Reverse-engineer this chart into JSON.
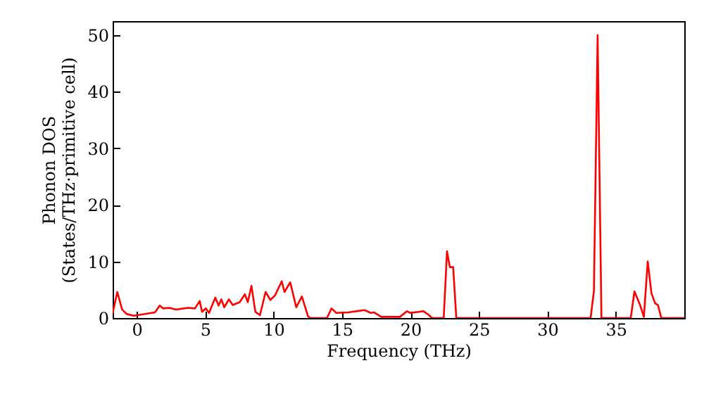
{
  "chart_data": {
    "type": "line",
    "xlabel": "Frequency (THz)",
    "ylabel": "Phonon DOS\n(States/THz·primitive cell)",
    "x": [
      -1.75,
      -1.41,
      -1.06,
      -0.72,
      -0.2,
      1.34,
      1.69,
      1.93,
      2.37,
      2.89,
      3.75,
      4.26,
      4.61,
      4.78,
      5.06,
      5.29,
      5.75,
      5.99,
      6.19,
      6.4,
      6.74,
      7.02,
      7.53,
      7.91,
      8.12,
      8.39,
      8.67,
      9.01,
      9.42,
      9.77,
      10.11,
      10.6,
      10.8,
      11.22,
      11.66,
      12.07,
      12.52,
      12.69,
      13.9,
      14.24,
      14.58,
      15.45,
      16.65,
      17.1,
      17.34,
      17.86,
      19.23,
      19.75,
      20,
      20.95,
      21.36,
      21.57,
      22.43,
      22.67,
      22.88,
      23.12,
      23.35,
      31.27,
      33.16,
      33.4,
      33.67,
      33.95,
      36.09,
      36.36,
      36.77,
      37.05,
      37.33,
      37.6,
      37.87,
      38.08,
      38.32,
      40
    ],
    "series": [
      {
        "color": "#ff0000",
        "values": [
          0.8,
          4.6,
          1.5,
          0.7,
          0.4,
          1.0,
          2.2,
          1.7,
          1.8,
          1.5,
          1.8,
          1.7,
          3.0,
          1.1,
          1.7,
          0.9,
          3.6,
          2.2,
          3.3,
          1.9,
          3.3,
          2.3,
          2.8,
          4.2,
          2.8,
          5.7,
          1.1,
          0.5,
          4.6,
          3.2,
          4.0,
          6.5,
          4.6,
          6.3,
          1.9,
          3.8,
          0.3,
          0,
          0,
          1.7,
          0.9,
          1.0,
          1.4,
          0.9,
          1.0,
          0.2,
          0.2,
          1.2,
          0.9,
          1.2,
          0.5,
          0,
          0,
          11.8,
          9,
          9,
          0,
          0,
          0,
          4.8,
          50,
          0,
          0,
          4.7,
          2.3,
          0.2,
          10,
          4.4,
          2.6,
          2.3,
          0,
          0
        ]
      }
    ],
    "xlim": [
      -1.75,
      40
    ],
    "ylim": [
      0,
      52.5
    ],
    "xticks": [
      0,
      5,
      10,
      15,
      20,
      25,
      30,
      35
    ],
    "yticks": [
      0,
      10,
      20,
      30,
      40,
      50
    ],
    "grid": false,
    "line_style": "solid",
    "marker": "none"
  }
}
